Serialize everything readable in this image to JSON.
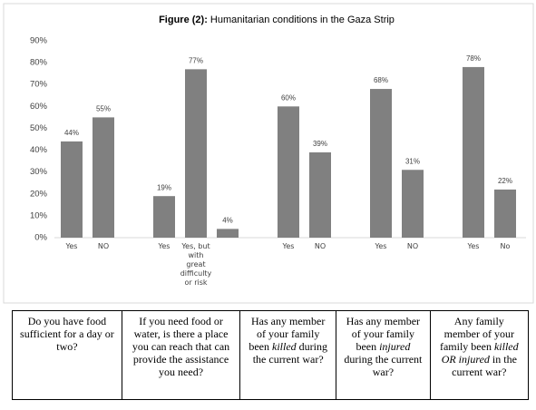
{
  "chart_data": {
    "type": "bar",
    "title_prefix": "Figure (2):",
    "title": "Humanitarian conditions in the Gaza Strip",
    "color": "#808080",
    "ylim": [
      0,
      90
    ],
    "yticks": [
      {
        "value": 0,
        "label": "0%"
      },
      {
        "value": 10,
        "label": "10%"
      },
      {
        "value": 20,
        "label": "20%"
      },
      {
        "value": 30,
        "label": "30%"
      },
      {
        "value": 40,
        "label": "40%"
      },
      {
        "value": 50,
        "label": "50%"
      },
      {
        "value": 60,
        "label": "60%"
      },
      {
        "value": 70,
        "label": "70%"
      },
      {
        "value": 80,
        "label": "80%"
      },
      {
        "value": 90,
        "label": "90%"
      }
    ],
    "groups": [
      {
        "categories": [
          "Yes",
          "NO"
        ],
        "values": [
          44,
          55
        ],
        "value_labels": [
          "44%",
          "55%"
        ]
      },
      {
        "categories": [
          "Yes",
          "Yes, but with great difficulty or risk",
          null
        ],
        "values": [
          19,
          77,
          4
        ],
        "value_labels": [
          "19%",
          "77%",
          "4%"
        ]
      },
      {
        "categories": [
          "Yes",
          "NO"
        ],
        "values": [
          60,
          39
        ],
        "value_labels": [
          "60%",
          "39%"
        ]
      },
      {
        "categories": [
          "Yes",
          "NO"
        ],
        "values": [
          68,
          31
        ],
        "value_labels": [
          "68%",
          "31%"
        ]
      },
      {
        "categories": [
          "Yes",
          "No"
        ],
        "values": [
          78,
          22
        ],
        "value_labels": [
          "78%",
          "22%"
        ]
      }
    ]
  },
  "table": {
    "cells": [
      [
        "Do you have food sufficient for a day or two?"
      ],
      [
        "If you need food or water, is there a place you can reach that can provide the assistance you need?"
      ],
      [
        "Has any member of your family been ",
        "killed",
        " during the current war?"
      ],
      [
        "Has any member of your family been ",
        "injured",
        " during the current war?"
      ],
      [
        "Any family member of your family been ",
        "killed OR injured",
        " in the current war?"
      ]
    ]
  }
}
